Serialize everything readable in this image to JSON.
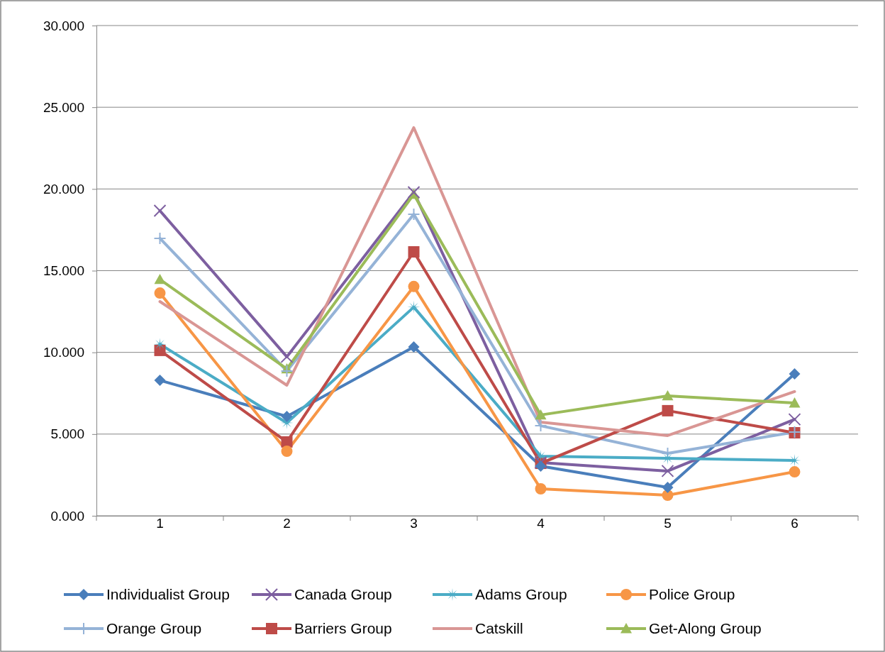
{
  "chart_data": {
    "type": "line",
    "categories": [
      "1",
      "2",
      "3",
      "4",
      "5",
      "6"
    ],
    "ylim": [
      0,
      30
    ],
    "yticks": [
      {
        "value": 0,
        "label": "0.000"
      },
      {
        "value": 5,
        "label": "5.000"
      },
      {
        "value": 10,
        "label": "10.000"
      },
      {
        "value": 15,
        "label": "15.000"
      },
      {
        "value": 20,
        "label": "20.000"
      },
      {
        "value": 25,
        "label": "25.000"
      },
      {
        "value": 30,
        "label": "30.000"
      }
    ],
    "grid": "y",
    "legend": "bottom",
    "line_style": "solid",
    "series": [
      {
        "name": "Individualist Group",
        "color": "#4a7ebb",
        "marker": "diamond",
        "values": [
          8.29,
          6.08,
          10.33,
          3.04,
          1.74,
          8.68
        ]
      },
      {
        "name": "Canada Group",
        "color": "#7d5fa0",
        "marker": "cross",
        "values": [
          18.67,
          9.73,
          19.8,
          3.26,
          2.74,
          5.9
        ]
      },
      {
        "name": "Adams Group",
        "color": "#4bacc6",
        "marker": "star",
        "values": [
          10.5,
          5.69,
          12.77,
          3.65,
          3.52,
          3.39
        ]
      },
      {
        "name": "Police Group",
        "color": "#f79646",
        "marker": "circle",
        "values": [
          13.63,
          3.95,
          14.03,
          1.65,
          1.26,
          2.69
        ]
      },
      {
        "name": "Orange Group",
        "color": "#95b3d7",
        "marker": "plus",
        "values": [
          16.98,
          8.86,
          18.45,
          5.51,
          3.82,
          5.12
        ]
      },
      {
        "name": "Barriers Group",
        "color": "#be4b48",
        "marker": "square",
        "values": [
          10.12,
          4.52,
          16.15,
          3.21,
          6.43,
          5.08
        ]
      },
      {
        "name": "Catskill",
        "color": "#d99694",
        "marker": "none",
        "values": [
          13.11,
          7.99,
          23.75,
          5.73,
          4.91,
          7.6
        ]
      },
      {
        "name": "Get-Along Group",
        "color": "#9bbb59",
        "marker": "triangle",
        "values": [
          14.46,
          8.99,
          19.67,
          6.17,
          7.34,
          6.9
        ]
      }
    ]
  }
}
